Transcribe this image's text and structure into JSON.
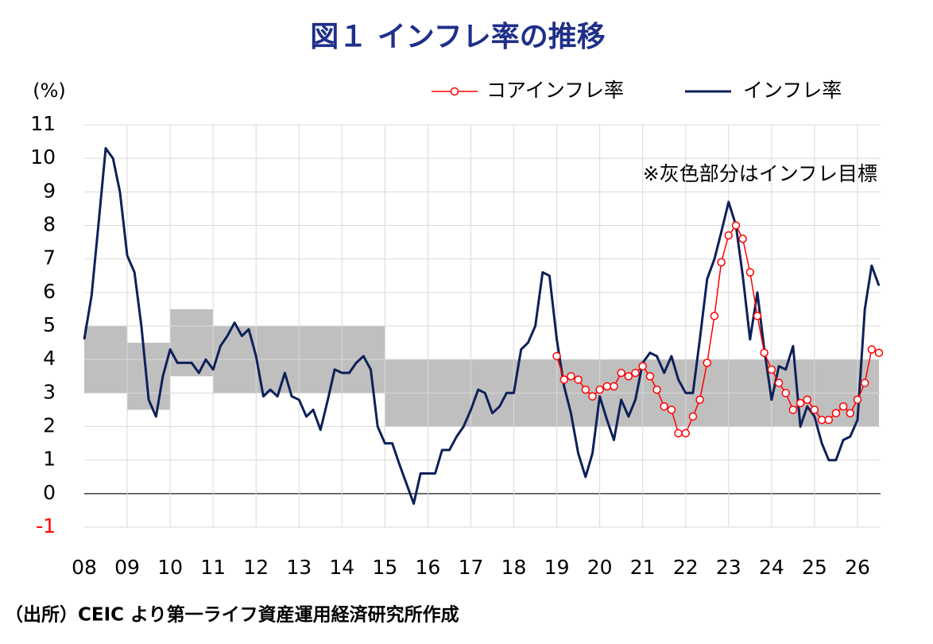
{
  "chart_data": {
    "type": "line",
    "title": "図１ インフレ率の推移",
    "y_label": "(%)",
    "annotation": "※灰色部分はインフレ目標",
    "source": "（出所）CEIC より第一ライフ資産運用経済研究所作成",
    "x": [
      2008,
      2008.17,
      2008.33,
      2008.5,
      2008.67,
      2008.83,
      2009,
      2009.17,
      2009.33,
      2009.5,
      2009.67,
      2009.83,
      2010,
      2010.17,
      2010.33,
      2010.5,
      2010.67,
      2010.83,
      2011,
      2011.17,
      2011.33,
      2011.5,
      2011.67,
      2011.83,
      2012,
      2012.17,
      2012.33,
      2012.5,
      2012.67,
      2012.83,
      2013,
      2013.17,
      2013.33,
      2013.5,
      2013.67,
      2013.83,
      2014,
      2014.17,
      2014.33,
      2014.5,
      2014.67,
      2014.83,
      2015,
      2015.17,
      2015.33,
      2015.5,
      2015.67,
      2015.83,
      2016,
      2016.17,
      2016.33,
      2016.5,
      2016.67,
      2016.83,
      2017,
      2017.17,
      2017.33,
      2017.5,
      2017.67,
      2017.83,
      2018,
      2018.17,
      2018.33,
      2018.5,
      2018.67,
      2018.83,
      2019,
      2019.17,
      2019.33,
      2019.5,
      2019.67,
      2019.83,
      2020,
      2020.17,
      2020.33,
      2020.5,
      2020.67,
      2020.83,
      2021,
      2021.17,
      2021.33,
      2021.5,
      2021.67,
      2021.83,
      2022,
      2022.17,
      2022.33,
      2022.5,
      2022.67,
      2022.83,
      2023,
      2023.17,
      2023.33,
      2023.5,
      2023.67,
      2023.83,
      2024,
      2024.17,
      2024.33,
      2024.5,
      2024.67,
      2024.83,
      2025,
      2025.17,
      2025.33,
      2025.5,
      2025.67,
      2025.83,
      2026,
      2026.17,
      2026.33,
      2026.5
    ],
    "series": [
      {
        "name": "コアインフレ率",
        "color": "#ff0000",
        "marker": "circle",
        "values": [
          null,
          null,
          null,
          null,
          null,
          null,
          null,
          null,
          null,
          null,
          null,
          null,
          null,
          null,
          null,
          null,
          null,
          null,
          null,
          null,
          null,
          null,
          null,
          null,
          null,
          null,
          null,
          null,
          null,
          null,
          null,
          null,
          null,
          null,
          null,
          null,
          null,
          null,
          null,
          null,
          null,
          null,
          null,
          null,
          null,
          null,
          null,
          null,
          null,
          null,
          null,
          null,
          null,
          null,
          null,
          null,
          null,
          null,
          null,
          null,
          null,
          null,
          null,
          null,
          null,
          null,
          4.1,
          3.4,
          3.5,
          3.4,
          3.1,
          2.9,
          3.1,
          3.2,
          3.2,
          3.6,
          3.5,
          3.6,
          3.8,
          3.5,
          3.1,
          2.6,
          2.5,
          1.8,
          1.8,
          2.3,
          2.8,
          3.9,
          5.3,
          6.9,
          7.7,
          8.0,
          7.6,
          6.6,
          5.3,
          4.2,
          3.7,
          3.3,
          3.0,
          2.5,
          2.7,
          2.8,
          2.5,
          2.2,
          2.2,
          2.4,
          2.6,
          2.4,
          2.8,
          3.3,
          4.3,
          4.2
        ]
      },
      {
        "name": "インフレ率",
        "color": "#0d2159",
        "values": [
          4.6,
          5.9,
          8.0,
          10.3,
          10.0,
          9.0,
          7.1,
          6.6,
          5.0,
          2.8,
          2.3,
          3.5,
          4.3,
          3.9,
          3.9,
          3.9,
          3.6,
          4.0,
          3.7,
          4.4,
          4.7,
          5.1,
          4.7,
          4.9,
          4.1,
          2.9,
          3.1,
          2.9,
          3.6,
          2.9,
          2.8,
          2.3,
          2.5,
          1.9,
          2.8,
          3.7,
          3.6,
          3.6,
          3.9,
          4.1,
          3.7,
          2.0,
          1.5,
          1.5,
          0.9,
          0.3,
          -0.3,
          0.6,
          0.6,
          0.6,
          1.3,
          1.3,
          1.7,
          2.0,
          2.5,
          3.1,
          3.0,
          2.4,
          2.6,
          3.0,
          3.0,
          4.3,
          4.5,
          5.0,
          6.6,
          6.5,
          4.6,
          3.2,
          2.4,
          1.2,
          0.5,
          1.2,
          2.9,
          2.2,
          1.6,
          2.8,
          2.3,
          2.8,
          3.9,
          4.2,
          4.1,
          3.6,
          4.1,
          3.4,
          3.0,
          3.0,
          4.6,
          6.4,
          7.0,
          7.8,
          8.7,
          8.0,
          6.5,
          4.6,
          6.0,
          4.3,
          2.8,
          3.8,
          3.7,
          4.4,
          2.0,
          2.6,
          2.3,
          1.5,
          1.0,
          1.0,
          1.6,
          1.7,
          2.2,
          5.5,
          6.8,
          6.2
        ]
      }
    ],
    "target_band": {
      "color": "#bfbfbf",
      "segments": [
        {
          "x": [
            2008,
            2009
          ],
          "range": [
            3,
            5
          ]
        },
        {
          "x": [
            2009,
            2010
          ],
          "range": [
            2.5,
            4.5
          ]
        },
        {
          "x": [
            2010,
            2011
          ],
          "range": [
            3.5,
            5.5
          ]
        },
        {
          "x": [
            2011,
            2015
          ],
          "range": [
            3,
            5
          ]
        },
        {
          "x": [
            2015,
            2026.5
          ],
          "range": [
            2,
            4
          ]
        }
      ]
    },
    "xlim": [
      2008,
      2026.5
    ],
    "xticks": [
      {
        "value": 2008,
        "label": "08"
      },
      {
        "value": 2009,
        "label": "09"
      },
      {
        "value": 2010,
        "label": "10"
      },
      {
        "value": 2011,
        "label": "11"
      },
      {
        "value": 2012,
        "label": "12"
      },
      {
        "value": 2013,
        "label": "13"
      },
      {
        "value": 2014,
        "label": "14"
      },
      {
        "value": 2015,
        "label": "15"
      },
      {
        "value": 2016,
        "label": "16"
      },
      {
        "value": 2017,
        "label": "17"
      },
      {
        "value": 2018,
        "label": "18"
      },
      {
        "value": 2019,
        "label": "19"
      },
      {
        "value": 2020,
        "label": "20"
      },
      {
        "value": 2021,
        "label": "21"
      },
      {
        "value": 2022,
        "label": "22"
      },
      {
        "value": 2023,
        "label": "23"
      },
      {
        "value": 2024,
        "label": "24"
      },
      {
        "value": 2025,
        "label": "25"
      },
      {
        "value": 2026,
        "label": "26"
      }
    ],
    "ylim": [
      -1,
      11
    ],
    "yticks": [
      -1,
      0,
      1,
      2,
      3,
      4,
      5,
      6,
      7,
      8,
      9,
      10,
      11
    ],
    "negative_tick_color": "#ff0000",
    "grid": true,
    "legend": "top-right"
  }
}
